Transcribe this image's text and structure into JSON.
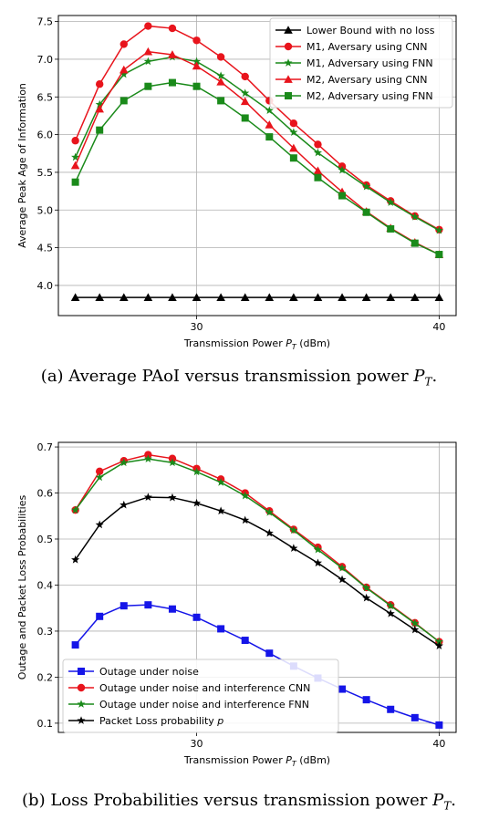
{
  "figures": [
    {
      "id": "a",
      "caption_prefix": "(a) Average PAoI versus transmission power",
      "caption_sym": "P",
      "caption_sub": "T",
      "caption_end": ".",
      "chart_data": {
        "type": "line",
        "xlabel": "Transmission Power P_T (dBm)",
        "ylabel": "Average Peak Age of Information",
        "xlim": [
          24.3,
          40.7
        ],
        "ylim": [
          3.6,
          7.58
        ],
        "xticks": [
          30,
          40
        ],
        "yticks": [
          4.0,
          4.5,
          5.0,
          5.5,
          6.0,
          6.5,
          7.0,
          7.5
        ],
        "grid": true,
        "legend": "top-right",
        "x": [
          25,
          26,
          27,
          28,
          29,
          30,
          31,
          32,
          33,
          34,
          35,
          36,
          37,
          38,
          39,
          40
        ],
        "series": [
          {
            "name": "Lower Bound with no loss",
            "color": "#000000",
            "marker": "triangle",
            "values": [
              3.84,
              3.84,
              3.84,
              3.84,
              3.84,
              3.84,
              3.84,
              3.84,
              3.84,
              3.84,
              3.84,
              3.84,
              3.84,
              3.84,
              3.84,
              3.84
            ]
          },
          {
            "name": "M1, Aversary using CNN",
            "color": "#e8141c",
            "marker": "circle",
            "values": [
              5.92,
              6.67,
              7.2,
              7.44,
              7.41,
              7.25,
              7.03,
              6.77,
              6.45,
              6.15,
              5.87,
              5.58,
              5.33,
              5.12,
              4.92,
              4.74
            ]
          },
          {
            "name": "M1, Adversary using FNN",
            "color": "#1a8a1a",
            "marker": "star",
            "values": [
              5.7,
              6.4,
              6.8,
              6.97,
              7.03,
              6.97,
              6.78,
              6.55,
              6.32,
              6.03,
              5.76,
              5.53,
              5.31,
              5.1,
              4.91,
              4.73
            ]
          },
          {
            "name": "M2, Aversary using CNN",
            "color": "#e8141c",
            "marker": "triangle",
            "values": [
              5.59,
              6.34,
              6.86,
              7.1,
              7.06,
              6.91,
              6.7,
              6.44,
              6.13,
              5.82,
              5.52,
              5.24,
              4.98,
              4.76,
              4.57,
              4.41
            ]
          },
          {
            "name": "M2, Adversary using FNN",
            "color": "#1a8a1a",
            "marker": "square",
            "values": [
              5.37,
              6.06,
              6.45,
              6.64,
              6.69,
              6.64,
              6.45,
              6.22,
              5.97,
              5.69,
              5.43,
              5.19,
              4.97,
              4.75,
              4.56,
              4.41
            ]
          }
        ]
      }
    },
    {
      "id": "b",
      "caption_prefix": "(b) Loss Probabilities versus transmission power",
      "caption_sym": "P",
      "caption_sub": "T",
      "caption_end": ".",
      "chart_data": {
        "type": "line",
        "xlabel": "Transmission Power P_T (dBm)",
        "ylabel": "Outage and Packet Loss Probabilities",
        "xlim": [
          24.3,
          40.7
        ],
        "ylim": [
          0.08,
          0.71
        ],
        "xticks": [
          30,
          40
        ],
        "yticks": [
          0.1,
          0.2,
          0.3,
          0.4,
          0.5,
          0.6,
          0.7
        ],
        "grid": true,
        "legend": "bottom-left",
        "x": [
          25,
          26,
          27,
          28,
          29,
          30,
          31,
          32,
          33,
          34,
          35,
          36,
          37,
          38,
          39,
          40
        ],
        "series": [
          {
            "name": "Outage under noise",
            "color": "#1515e8",
            "marker": "square",
            "values": [
              0.27,
              0.332,
              0.355,
              0.357,
              0.348,
              0.33,
              0.305,
              0.28,
              0.252,
              0.224,
              0.198,
              0.174,
              0.151,
              0.13,
              0.112,
              0.096
            ]
          },
          {
            "name": "Outage under noise and interference CNN",
            "color": "#e8141c",
            "marker": "circle",
            "values": [
              0.563,
              0.647,
              0.67,
              0.683,
              0.675,
              0.653,
              0.63,
              0.6,
              0.561,
              0.521,
              0.482,
              0.44,
              0.395,
              0.357,
              0.318,
              0.277
            ]
          },
          {
            "name": "Outage under noise and interference FNN",
            "color": "#1a8a1a",
            "marker": "star",
            "values": [
              0.563,
              0.634,
              0.666,
              0.674,
              0.666,
              0.646,
              0.623,
              0.594,
              0.558,
              0.519,
              0.477,
              0.437,
              0.394,
              0.355,
              0.317,
              0.277
            ]
          },
          {
            "name": "Packet Loss probability p",
            "color": "#000000",
            "marker": "star",
            "values": [
              0.455,
              0.531,
              0.574,
              0.591,
              0.59,
              0.578,
              0.561,
              0.541,
              0.513,
              0.48,
              0.448,
              0.412,
              0.372,
              0.338,
              0.303,
              0.268
            ]
          }
        ]
      }
    }
  ]
}
